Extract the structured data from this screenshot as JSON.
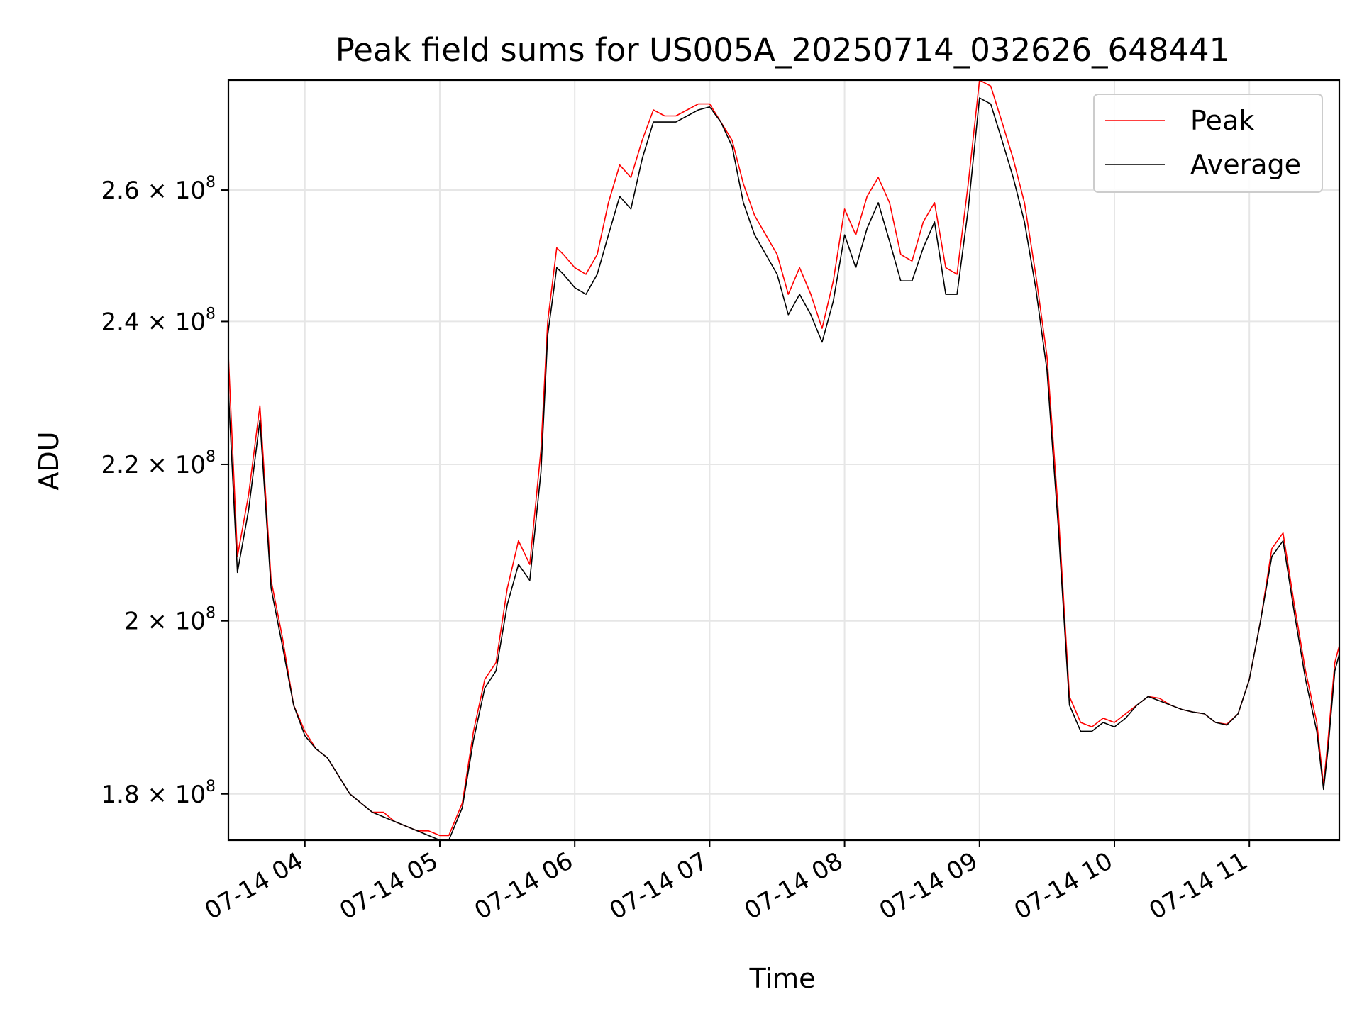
{
  "chart_data": {
    "type": "line",
    "title": "Peak field sums for US005A_20250714_032626_648441",
    "xlabel": "Time",
    "ylabel": "ADU",
    "yscale": "log",
    "xlim": [
      "2025-07-14 03:26",
      "2025-07-14 11:40"
    ],
    "ylim": [
      175000000,
      278000000
    ],
    "x_ticks": [
      {
        "value": "2025-07-14 04:00",
        "label": "07-14 04"
      },
      {
        "value": "2025-07-14 05:00",
        "label": "07-14 05"
      },
      {
        "value": "2025-07-14 06:00",
        "label": "07-14 06"
      },
      {
        "value": "2025-07-14 07:00",
        "label": "07-14 07"
      },
      {
        "value": "2025-07-14 08:00",
        "label": "07-14 08"
      },
      {
        "value": "2025-07-14 09:00",
        "label": "07-14 09"
      },
      {
        "value": "2025-07-14 10:00",
        "label": "07-14 10"
      },
      {
        "value": "2025-07-14 11:00",
        "label": "07-14 11"
      }
    ],
    "y_ticks": [
      {
        "value": 180000000,
        "mantissa": "1.8",
        "exp": "8"
      },
      {
        "value": 200000000,
        "mantissa": "2",
        "exp": "8"
      },
      {
        "value": 220000000,
        "mantissa": "2.2",
        "exp": "8"
      },
      {
        "value": 240000000,
        "mantissa": "2.4",
        "exp": "8"
      },
      {
        "value": 260000000,
        "mantissa": "2.6",
        "exp": "8"
      }
    ],
    "grid": true,
    "legend_position": "top-right",
    "x": [
      "2025-07-14 03:26",
      "2025-07-14 03:30",
      "2025-07-14 03:35",
      "2025-07-14 03:40",
      "2025-07-14 03:45",
      "2025-07-14 03:50",
      "2025-07-14 03:55",
      "2025-07-14 04:00",
      "2025-07-14 04:05",
      "2025-07-14 04:10",
      "2025-07-14 04:15",
      "2025-07-14 04:20",
      "2025-07-14 04:25",
      "2025-07-14 04:30",
      "2025-07-14 04:35",
      "2025-07-14 04:40",
      "2025-07-14 04:45",
      "2025-07-14 04:50",
      "2025-07-14 04:55",
      "2025-07-14 05:00",
      "2025-07-14 05:04",
      "2025-07-14 05:10",
      "2025-07-14 05:15",
      "2025-07-14 05:20",
      "2025-07-14 05:25",
      "2025-07-14 05:30",
      "2025-07-14 05:35",
      "2025-07-14 05:40",
      "2025-07-14 05:45",
      "2025-07-14 05:48",
      "2025-07-14 05:52",
      "2025-07-14 05:55",
      "2025-07-14 06:00",
      "2025-07-14 06:05",
      "2025-07-14 06:10",
      "2025-07-14 06:15",
      "2025-07-14 06:20",
      "2025-07-14 06:25",
      "2025-07-14 06:30",
      "2025-07-14 06:35",
      "2025-07-14 06:40",
      "2025-07-14 06:45",
      "2025-07-14 06:50",
      "2025-07-14 06:55",
      "2025-07-14 07:00",
      "2025-07-14 07:05",
      "2025-07-14 07:10",
      "2025-07-14 07:15",
      "2025-07-14 07:20",
      "2025-07-14 07:25",
      "2025-07-14 07:30",
      "2025-07-14 07:35",
      "2025-07-14 07:40",
      "2025-07-14 07:45",
      "2025-07-14 07:50",
      "2025-07-14 07:55",
      "2025-07-14 08:00",
      "2025-07-14 08:05",
      "2025-07-14 08:10",
      "2025-07-14 08:15",
      "2025-07-14 08:20",
      "2025-07-14 08:25",
      "2025-07-14 08:30",
      "2025-07-14 08:35",
      "2025-07-14 08:40",
      "2025-07-14 08:45",
      "2025-07-14 08:50",
      "2025-07-14 08:55",
      "2025-07-14 09:00",
      "2025-07-14 09:05",
      "2025-07-14 09:10",
      "2025-07-14 09:15",
      "2025-07-14 09:20",
      "2025-07-14 09:25",
      "2025-07-14 09:30",
      "2025-07-14 09:35",
      "2025-07-14 09:40",
      "2025-07-14 09:45",
      "2025-07-14 09:50",
      "2025-07-14 09:55",
      "2025-07-14 10:00",
      "2025-07-14 10:05",
      "2025-07-14 10:10",
      "2025-07-14 10:15",
      "2025-07-14 10:20",
      "2025-07-14 10:25",
      "2025-07-14 10:30",
      "2025-07-14 10:35",
      "2025-07-14 10:40",
      "2025-07-14 10:45",
      "2025-07-14 10:50",
      "2025-07-14 10:55",
      "2025-07-14 11:00",
      "2025-07-14 11:05",
      "2025-07-14 11:10",
      "2025-07-14 11:15",
      "2025-07-14 11:20",
      "2025-07-14 11:25",
      "2025-07-14 11:30",
      "2025-07-14 11:33",
      "2025-07-14 11:35",
      "2025-07-14 11:38",
      "2025-07-14 11:40"
    ],
    "series": [
      {
        "name": "Peak",
        "color": "#ff0000",
        "values": [
          235000000,
          208000000,
          216000000,
          228000000,
          205000000,
          198000000,
          190000000,
          187000000,
          185000000,
          184000000,
          182000000,
          180000000,
          179000000,
          178000000,
          178000000,
          177000000,
          176500000,
          176000000,
          176000000,
          175500000,
          175500000,
          179000000,
          187000000,
          193000000,
          195000000,
          204000000,
          210000000,
          207000000,
          222000000,
          240000000,
          251000000,
          250000000,
          248000000,
          247000000,
          250000000,
          258000000,
          264000000,
          262000000,
          268000000,
          273000000,
          272000000,
          272000000,
          273000000,
          274000000,
          274000000,
          271000000,
          268000000,
          261000000,
          256000000,
          253000000,
          250000000,
          244000000,
          248000000,
          244000000,
          239000000,
          246000000,
          257000000,
          253000000,
          259000000,
          262000000,
          258000000,
          250000000,
          249000000,
          255000000,
          258000000,
          248000000,
          247000000,
          261000000,
          278000000,
          277000000,
          271000000,
          265000000,
          258000000,
          247000000,
          235000000,
          214000000,
          191000000,
          188000000,
          187500000,
          188500000,
          188000000,
          189000000,
          190000000,
          191000000,
          190800000,
          190000000,
          189500000,
          189200000,
          189000000,
          188000000,
          187800000,
          189000000,
          193000000,
          200000000,
          209000000,
          211000000,
          202000000,
          194000000,
          188000000,
          181000000,
          186000000,
          195000000,
          197000000
        ]
      },
      {
        "name": "Average",
        "color": "#000000",
        "values": [
          230000000,
          206000000,
          214000000,
          226000000,
          204000000,
          197000000,
          190000000,
          186500000,
          185000000,
          184000000,
          182000000,
          180000000,
          179000000,
          178000000,
          177500000,
          177000000,
          176500000,
          176000000,
          175500000,
          175000000,
          175000000,
          178500000,
          186000000,
          192000000,
          194000000,
          202000000,
          207000000,
          205000000,
          219000000,
          238000000,
          248000000,
          247000000,
          245000000,
          244000000,
          247000000,
          253000000,
          259000000,
          257000000,
          265000000,
          271000000,
          271000000,
          271000000,
          272000000,
          273000000,
          273500000,
          271000000,
          267000000,
          258000000,
          253000000,
          250000000,
          247000000,
          241000000,
          244000000,
          241000000,
          237000000,
          243000000,
          253000000,
          248000000,
          254000000,
          258000000,
          252000000,
          246000000,
          246000000,
          251000000,
          255000000,
          244000000,
          244000000,
          257000000,
          275000000,
          274000000,
          268000000,
          262000000,
          255000000,
          245000000,
          233000000,
          212000000,
          190000000,
          187000000,
          187000000,
          188000000,
          187500000,
          188500000,
          190000000,
          191000000,
          190500000,
          190000000,
          189500000,
          189200000,
          189000000,
          188000000,
          187700000,
          189000000,
          193000000,
          200000000,
          208000000,
          210000000,
          201000000,
          193000000,
          187000000,
          180500000,
          185000000,
          194000000,
          196000000
        ]
      }
    ]
  }
}
